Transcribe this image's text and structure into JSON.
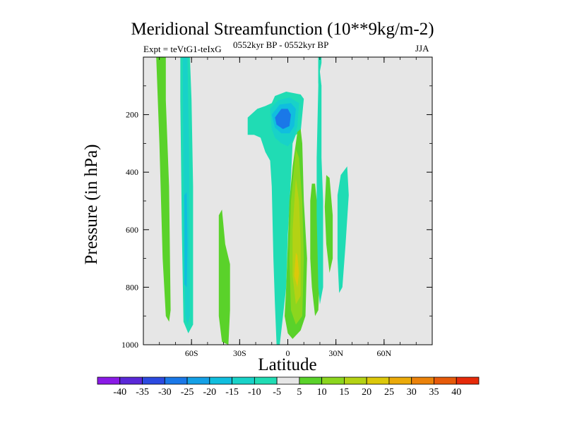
{
  "chart_data": {
    "type": "heatmap",
    "subtype": "filled-contour",
    "title": "Meridional Streamfunction (10**9kg/m-2)",
    "expt_label": "Expt = teVtG1-teIxG",
    "period_label": "0552kyr BP - 0552kyr BP",
    "season_label": "JJA",
    "xlabel": "Latitude",
    "ylabel": "Pressure (in hPa)",
    "xlim": [
      -90,
      90
    ],
    "ylim": [
      1000,
      0
    ],
    "x_ticks": [
      {
        "value": -60,
        "label": "60S"
      },
      {
        "value": -30,
        "label": "30S"
      },
      {
        "value": 0,
        "label": "0"
      },
      {
        "value": 30,
        "label": "30N"
      },
      {
        "value": 60,
        "label": "60N"
      }
    ],
    "y_ticks": [
      {
        "value": 200,
        "label": "200"
      },
      {
        "value": 400,
        "label": "400"
      },
      {
        "value": 600,
        "label": "600"
      },
      {
        "value": 800,
        "label": "800"
      },
      {
        "value": 1000,
        "label": "1000"
      }
    ],
    "background_color": "#e6e6e6",
    "colorbar": {
      "levels": [
        -40,
        -35,
        -30,
        -25,
        -20,
        -15,
        -10,
        -5,
        5,
        10,
        15,
        20,
        25,
        30,
        35,
        40
      ],
      "labels": [
        "-40",
        "-35",
        "-30",
        "-25",
        "-20",
        "-15",
        "-10",
        "-5",
        "5",
        "10",
        "15",
        "20",
        "25",
        "30",
        "35",
        "40"
      ],
      "colors": [
        "#8a1ae6",
        "#5a28d8",
        "#2c4ae0",
        "#1a78e8",
        "#14a0e6",
        "#10bede",
        "#18d2c8",
        "#20dcb4",
        "#e6e6e6",
        "#5ad22a",
        "#8cd61e",
        "#b4d214",
        "#dcc80a",
        "#ebaa0a",
        "#eb820a",
        "#e65a0a",
        "#e62a0a"
      ]
    },
    "regions": [
      {
        "name": "sh-polar-positive-band",
        "level": "5 to 10",
        "color": "#5ad22a",
        "points": [
          [
            -82,
            0
          ],
          [
            -76,
            0
          ],
          [
            -76,
            150
          ],
          [
            -74,
            450
          ],
          [
            -73,
            880
          ],
          [
            -74,
            920
          ],
          [
            -76,
            900
          ],
          [
            -78,
            700
          ],
          [
            -80,
            300
          ],
          [
            -82,
            0
          ]
        ]
      },
      {
        "name": "sh-negative-column-outer",
        "level": "-10 to -5",
        "color": "#20dcb4",
        "points": [
          [
            -67,
            0
          ],
          [
            -61,
            0
          ],
          [
            -60,
            150
          ],
          [
            -59,
            450
          ],
          [
            -59,
            930
          ],
          [
            -62,
            960
          ],
          [
            -65,
            920
          ],
          [
            -66,
            600
          ],
          [
            -67,
            150
          ],
          [
            -67,
            0
          ]
        ]
      },
      {
        "name": "sh-negative-column-inner",
        "level": "-15 to -10",
        "color": "#18d2c8",
        "points": [
          [
            -65.5,
            0
          ],
          [
            -62.5,
            0
          ],
          [
            -61.5,
            350
          ],
          [
            -61,
            900
          ],
          [
            -62.5,
            930
          ],
          [
            -64,
            900
          ],
          [
            -65,
            400
          ],
          [
            -65.5,
            0
          ]
        ]
      },
      {
        "name": "sh-negative-column-core",
        "level": "-20 to -15",
        "color": "#10bede",
        "points": [
          [
            -64.5,
            480
          ],
          [
            -63,
            470
          ],
          [
            -62.5,
            650
          ],
          [
            -63,
            800
          ],
          [
            -64.5,
            790
          ],
          [
            -64.5,
            480
          ]
        ]
      },
      {
        "name": "sh-midlat-positive-cell",
        "level": "5 to 10",
        "color": "#5ad22a",
        "points": [
          [
            -43,
            550
          ],
          [
            -41,
            530
          ],
          [
            -39,
            650
          ],
          [
            -36,
            720
          ],
          [
            -36,
            880
          ],
          [
            -37,
            1000
          ],
          [
            -41,
            990
          ],
          [
            -43,
            900
          ],
          [
            -43,
            550
          ]
        ]
      },
      {
        "name": "tropical-negative-cell-outer",
        "level": "-10 to -5",
        "color": "#20dcb4",
        "points": [
          [
            -25,
            210
          ],
          [
            -19,
            180
          ],
          [
            -14,
            170
          ],
          [
            -10,
            160
          ],
          [
            -8,
            135
          ],
          [
            -1,
            120
          ],
          [
            8,
            130
          ],
          [
            10,
            145
          ],
          [
            8,
            260
          ],
          [
            5,
            270
          ],
          [
            3,
            300
          ],
          [
            2,
            420
          ],
          [
            0,
            620
          ],
          [
            -1,
            800
          ],
          [
            -3,
            900
          ],
          [
            -5,
            1000
          ],
          [
            -7,
            1000
          ],
          [
            -8,
            860
          ],
          [
            -9,
            700
          ],
          [
            -10,
            450
          ],
          [
            -11,
            360
          ],
          [
            -14,
            330
          ],
          [
            -17,
            280
          ],
          [
            -21,
            270
          ],
          [
            -25,
            270
          ],
          [
            -25,
            210
          ]
        ]
      },
      {
        "name": "tropical-negative-cell-ring2",
        "level": "-15 to -10",
        "color": "#18d2c8",
        "points": [
          [
            -11,
            180
          ],
          [
            -6,
            150
          ],
          [
            1,
            140
          ],
          [
            7,
            160
          ],
          [
            6,
            240
          ],
          [
            3,
            290
          ],
          [
            0,
            310
          ],
          [
            -4,
            300
          ],
          [
            -8,
            280
          ],
          [
            -10,
            250
          ],
          [
            -11,
            180
          ]
        ]
      },
      {
        "name": "tropical-negative-cell-ring3",
        "level": "-20 to -15",
        "color": "#10bede",
        "points": [
          [
            -10,
            200
          ],
          [
            -5,
            165
          ],
          [
            2,
            160
          ],
          [
            5,
            180
          ],
          [
            4,
            240
          ],
          [
            1,
            265
          ],
          [
            -4,
            265
          ],
          [
            -8,
            245
          ],
          [
            -10,
            200
          ]
        ]
      },
      {
        "name": "tropical-negative-cell-ring4",
        "level": "-25 to -20",
        "color": "#1a78e8",
        "points": [
          [
            -8,
            210
          ],
          [
            -4,
            180
          ],
          [
            0,
            180
          ],
          [
            2,
            200
          ],
          [
            1,
            240
          ],
          [
            -3,
            250
          ],
          [
            -7,
            235
          ],
          [
            -8,
            210
          ]
        ]
      },
      {
        "name": "tropical-positive-cell-outer",
        "level": "5 to 10",
        "color": "#5ad22a",
        "points": [
          [
            6,
            260
          ],
          [
            5,
            300
          ],
          [
            3,
            380
          ],
          [
            1,
            500
          ],
          [
            0,
            650
          ],
          [
            -1,
            800
          ],
          [
            -2,
            900
          ],
          [
            0,
            960
          ],
          [
            3,
            980
          ],
          [
            8,
            950
          ],
          [
            11,
            900
          ],
          [
            12,
            700
          ],
          [
            10,
            500
          ],
          [
            9,
            300
          ],
          [
            8,
            250
          ],
          [
            6,
            260
          ]
        ]
      },
      {
        "name": "tropical-positive-cell-ring2",
        "level": "10 to 15",
        "color": "#8cd61e",
        "points": [
          [
            5,
            320
          ],
          [
            2,
            500
          ],
          [
            1,
            700
          ],
          [
            2,
            880
          ],
          [
            5,
            930
          ],
          [
            9,
            900
          ],
          [
            10,
            700
          ],
          [
            9,
            500
          ],
          [
            7,
            350
          ],
          [
            5,
            320
          ]
        ]
      },
      {
        "name": "tropical-positive-cell-ring3",
        "level": "15 to 20",
        "color": "#b4d214",
        "points": [
          [
            5,
            420
          ],
          [
            3,
            600
          ],
          [
            3,
            760
          ],
          [
            5,
            860
          ],
          [
            8,
            830
          ],
          [
            8,
            650
          ],
          [
            7,
            500
          ],
          [
            5,
            420
          ]
        ]
      },
      {
        "name": "tropical-positive-cell-core",
        "level": "20 to 25",
        "color": "#dcc80a",
        "points": [
          [
            5,
            680
          ],
          [
            4,
            760
          ],
          [
            6,
            800
          ],
          [
            7,
            750
          ],
          [
            6,
            690
          ],
          [
            5,
            680
          ]
        ]
      },
      {
        "name": "nh-positive-cell-a",
        "level": "5 to 10",
        "color": "#5ad22a",
        "points": [
          [
            15,
            440
          ],
          [
            14,
            500
          ],
          [
            14,
            700
          ],
          [
            15,
            800
          ],
          [
            17,
            900
          ],
          [
            19,
            880
          ],
          [
            20,
            750
          ],
          [
            19,
            550
          ],
          [
            17,
            440
          ],
          [
            15,
            440
          ]
        ]
      },
      {
        "name": "nh-negative-cell-b",
        "level": "-10 to -5",
        "color": "#20dcb4",
        "points": [
          [
            19,
            0
          ],
          [
            20,
            0
          ],
          [
            20,
            80
          ],
          [
            21,
            100
          ],
          [
            21,
            350
          ],
          [
            22,
            500
          ],
          [
            22,
            800
          ],
          [
            20,
            860
          ],
          [
            19,
            800
          ],
          [
            18,
            550
          ],
          [
            18,
            350
          ],
          [
            19,
            100
          ],
          [
            19,
            0
          ]
        ]
      },
      {
        "name": "nh-positive-cell-c",
        "level": "5 to 10",
        "color": "#5ad22a",
        "points": [
          [
            24,
            410
          ],
          [
            23,
            520
          ],
          [
            24,
            650
          ],
          [
            26,
            750
          ],
          [
            28,
            700
          ],
          [
            28,
            550
          ],
          [
            26,
            420
          ],
          [
            24,
            410
          ]
        ]
      },
      {
        "name": "nh-negative-cell-d",
        "level": "-10 to -5",
        "color": "#20dcb4",
        "points": [
          [
            37,
            380
          ],
          [
            33,
            410
          ],
          [
            31,
            480
          ],
          [
            31,
            700
          ],
          [
            32,
            820
          ],
          [
            34,
            800
          ],
          [
            36,
            650
          ],
          [
            38,
            480
          ],
          [
            37,
            380
          ]
        ]
      },
      {
        "name": "nh-upper-negative-strip",
        "level": "-10 to -5",
        "color": "#20dcb4",
        "points": [
          [
            19,
            0
          ],
          [
            21,
            0
          ],
          [
            21,
            20
          ],
          [
            20,
            50
          ],
          [
            21,
            100
          ],
          [
            20,
            110
          ],
          [
            19,
            90
          ],
          [
            19,
            0
          ]
        ]
      }
    ]
  }
}
